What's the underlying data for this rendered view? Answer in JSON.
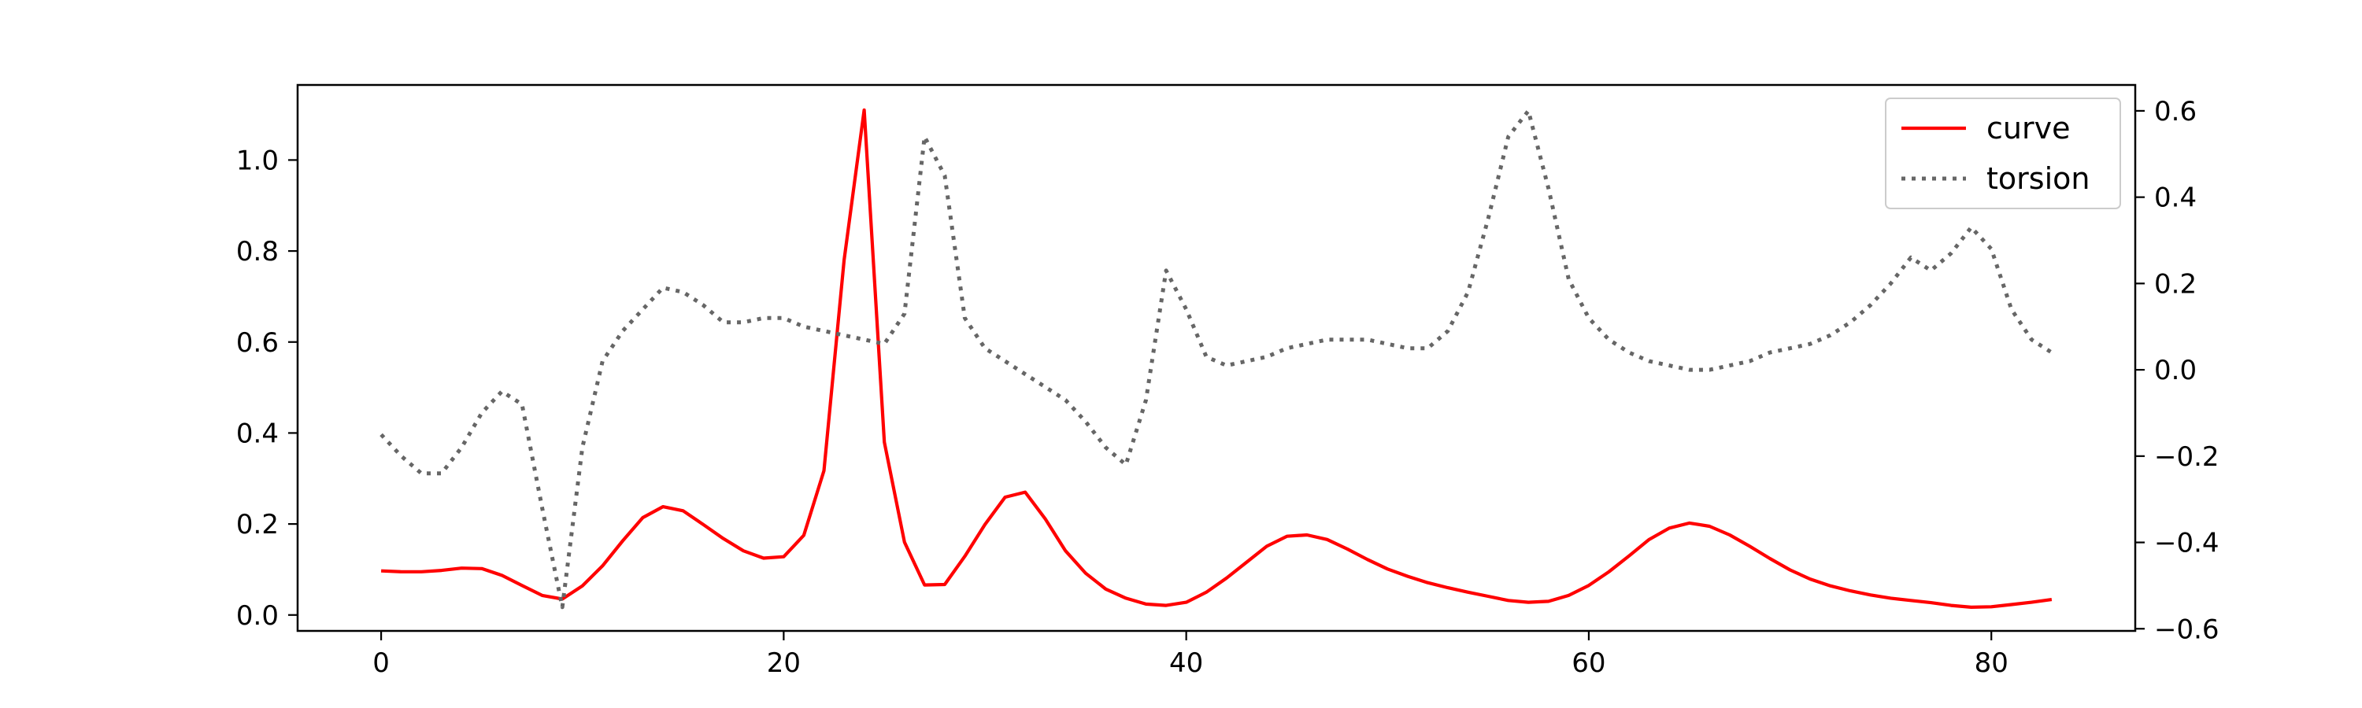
{
  "chart_data": {
    "type": "line",
    "title": "",
    "xlabel": "",
    "ylabel": "",
    "y2label": "",
    "xlim": [
      -4.15,
      87.15
    ],
    "ylim": [
      -0.035,
      1.165
    ],
    "y2lim": [
      -0.605,
      0.66
    ],
    "xticks": [
      0,
      20,
      40,
      60,
      80
    ],
    "yticks": [
      0.0,
      0.2,
      0.4,
      0.6,
      0.8,
      1.0
    ],
    "yticklabels": [
      "0.0",
      "0.2",
      "0.4",
      "0.6",
      "0.8",
      "1.0"
    ],
    "y2ticks": [
      -0.6,
      -0.4,
      -0.2,
      0.0,
      0.2,
      0.4,
      0.6
    ],
    "y2ticklabels": [
      "−0.6",
      "−0.4",
      "−0.2",
      "0.0",
      "0.2",
      "0.4",
      "0.6"
    ],
    "grid": false,
    "legend_position": "upper right",
    "x": [
      0,
      1,
      2,
      3,
      4,
      5,
      6,
      7,
      8,
      9,
      10,
      11,
      12,
      13,
      14,
      15,
      16,
      17,
      18,
      19,
      20,
      21,
      22,
      23,
      24,
      25,
      26,
      27,
      28,
      29,
      30,
      31,
      32,
      33,
      34,
      35,
      36,
      37,
      38,
      39,
      40,
      41,
      42,
      43,
      44,
      45,
      46,
      47,
      48,
      49,
      50,
      51,
      52,
      53,
      54,
      55,
      56,
      57,
      58,
      59,
      60,
      61,
      62,
      63,
      64,
      65,
      66,
      67,
      68,
      69,
      70,
      71,
      72,
      73,
      74,
      75,
      76,
      77,
      78,
      79,
      80,
      81,
      82,
      83
    ],
    "series": [
      {
        "name": "curve",
        "axis": "left",
        "color": "#ff0000",
        "linestyle": "solid",
        "values": [
          0.097,
          0.095,
          0.095,
          0.098,
          0.103,
          0.102,
          0.087,
          0.065,
          0.043,
          0.035,
          0.064,
          0.108,
          0.163,
          0.214,
          0.238,
          0.229,
          0.199,
          0.168,
          0.141,
          0.125,
          0.128,
          0.175,
          0.317,
          0.78,
          1.11,
          0.38,
          0.16,
          0.066,
          0.067,
          0.129,
          0.199,
          0.259,
          0.27,
          0.211,
          0.141,
          0.092,
          0.057,
          0.037,
          0.024,
          0.021,
          0.028,
          0.05,
          0.081,
          0.116,
          0.151,
          0.173,
          0.176,
          0.166,
          0.145,
          0.122,
          0.101,
          0.085,
          0.071,
          0.06,
          0.05,
          0.041,
          0.032,
          0.028,
          0.03,
          0.043,
          0.065,
          0.095,
          0.13,
          0.166,
          0.191,
          0.202,
          0.195,
          0.176,
          0.151,
          0.124,
          0.099,
          0.079,
          0.064,
          0.053,
          0.044,
          0.037,
          0.032,
          0.027,
          0.021,
          0.017,
          0.018,
          0.023,
          0.028,
          0.034
        ]
      },
      {
        "name": "torsion",
        "axis": "right",
        "color": "#666666",
        "linestyle": "dotted",
        "values": [
          -0.15,
          -0.2,
          -0.24,
          -0.24,
          -0.18,
          -0.1,
          -0.05,
          -0.08,
          -0.32,
          -0.55,
          -0.18,
          0.02,
          0.09,
          0.14,
          0.19,
          0.18,
          0.15,
          0.11,
          0.11,
          0.12,
          0.12,
          0.1,
          0.09,
          0.08,
          0.07,
          0.06,
          0.13,
          0.54,
          0.45,
          0.12,
          0.05,
          0.02,
          -0.01,
          -0.04,
          -0.07,
          -0.12,
          -0.18,
          -0.22,
          -0.07,
          0.23,
          0.14,
          0.03,
          0.01,
          0.02,
          0.03,
          0.05,
          0.06,
          0.07,
          0.07,
          0.07,
          0.06,
          0.05,
          0.05,
          0.09,
          0.18,
          0.35,
          0.54,
          0.6,
          0.42,
          0.21,
          0.12,
          0.07,
          0.04,
          0.02,
          0.01,
          0.0,
          0.0,
          0.01,
          0.02,
          0.04,
          0.05,
          0.06,
          0.08,
          0.11,
          0.15,
          0.2,
          0.26,
          0.23,
          0.27,
          0.33,
          0.28,
          0.14,
          0.07,
          0.04
        ]
      }
    ]
  }
}
